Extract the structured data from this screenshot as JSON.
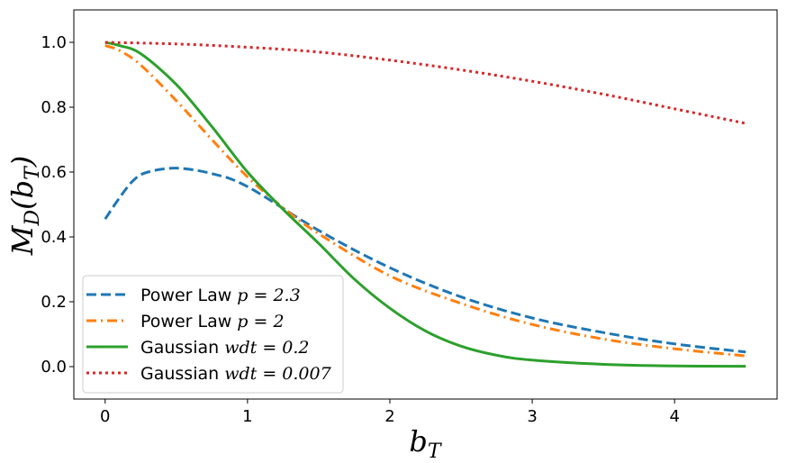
{
  "chart_data": {
    "type": "line",
    "xlabel": "b_T",
    "ylabel": "M_D(b_T)",
    "xlim": [
      -0.22,
      4.72
    ],
    "ylim": [
      -0.1,
      1.1
    ],
    "xticks": [
      0,
      1,
      2,
      3,
      4
    ],
    "xtick_labels": [
      "0",
      "1",
      "2",
      "3",
      "4"
    ],
    "yticks": [
      0.0,
      0.2,
      0.4,
      0.6,
      0.8,
      1.0
    ],
    "ytick_labels": [
      "0.0",
      "0.2",
      "0.4",
      "0.6",
      "0.8",
      "1.0"
    ],
    "grid": false,
    "legend_position": "lower-left",
    "series": [
      {
        "name": "Power Law p = 2.3",
        "legend_plain": "Power Law ",
        "legend_math": "p = 2.3",
        "color": "#1f77b4",
        "style": "dashed",
        "x": [
          0,
          0.1,
          0.2,
          0.3,
          0.5,
          0.75,
          1.0,
          1.5,
          2.0,
          2.5,
          3.0,
          3.5,
          4.0,
          4.5
        ],
        "y": [
          0.455,
          0.52,
          0.575,
          0.6,
          0.612,
          0.595,
          0.555,
          0.42,
          0.305,
          0.215,
          0.15,
          0.105,
          0.07,
          0.045
        ]
      },
      {
        "name": "Power Law p = 2",
        "legend_plain": "Power Law ",
        "legend_math": "p = 2",
        "color": "#ff7f0e",
        "style": "dashdot",
        "x": [
          0,
          0.1,
          0.25,
          0.5,
          0.75,
          1.0,
          1.25,
          1.5,
          2.0,
          2.5,
          3.0,
          3.5,
          4.0,
          4.5
        ],
        "y": [
          0.99,
          0.975,
          0.93,
          0.82,
          0.7,
          0.585,
          0.49,
          0.41,
          0.28,
          0.195,
          0.13,
          0.085,
          0.055,
          0.033
        ]
      },
      {
        "name": "Gaussian wdt = 0.2",
        "legend_plain": "Gaussian ",
        "legend_math": "wdt = 0.2",
        "color": "#2ca02c",
        "style": "solid",
        "x": [
          0,
          0.1,
          0.25,
          0.5,
          0.75,
          1.0,
          1.25,
          1.5,
          1.75,
          2.0,
          2.25,
          2.5,
          2.75,
          3.0,
          3.5,
          4.0,
          4.5
        ],
        "y": [
          1.0,
          0.99,
          0.965,
          0.87,
          0.74,
          0.6,
          0.485,
          0.38,
          0.27,
          0.18,
          0.11,
          0.063,
          0.035,
          0.02,
          0.007,
          0.002,
          0.001
        ]
      },
      {
        "name": "Gaussian wdt = 0.007",
        "legend_plain": "Gaussian ",
        "legend_math": "wdt = 0.007",
        "color": "#d62728",
        "style": "dotted",
        "x": [
          0,
          0.5,
          1.0,
          1.5,
          2.0,
          2.5,
          3.0,
          3.5,
          4.0,
          4.5
        ],
        "y": [
          1.0,
          0.995,
          0.985,
          0.97,
          0.945,
          0.915,
          0.88,
          0.84,
          0.795,
          0.75
        ]
      }
    ]
  }
}
